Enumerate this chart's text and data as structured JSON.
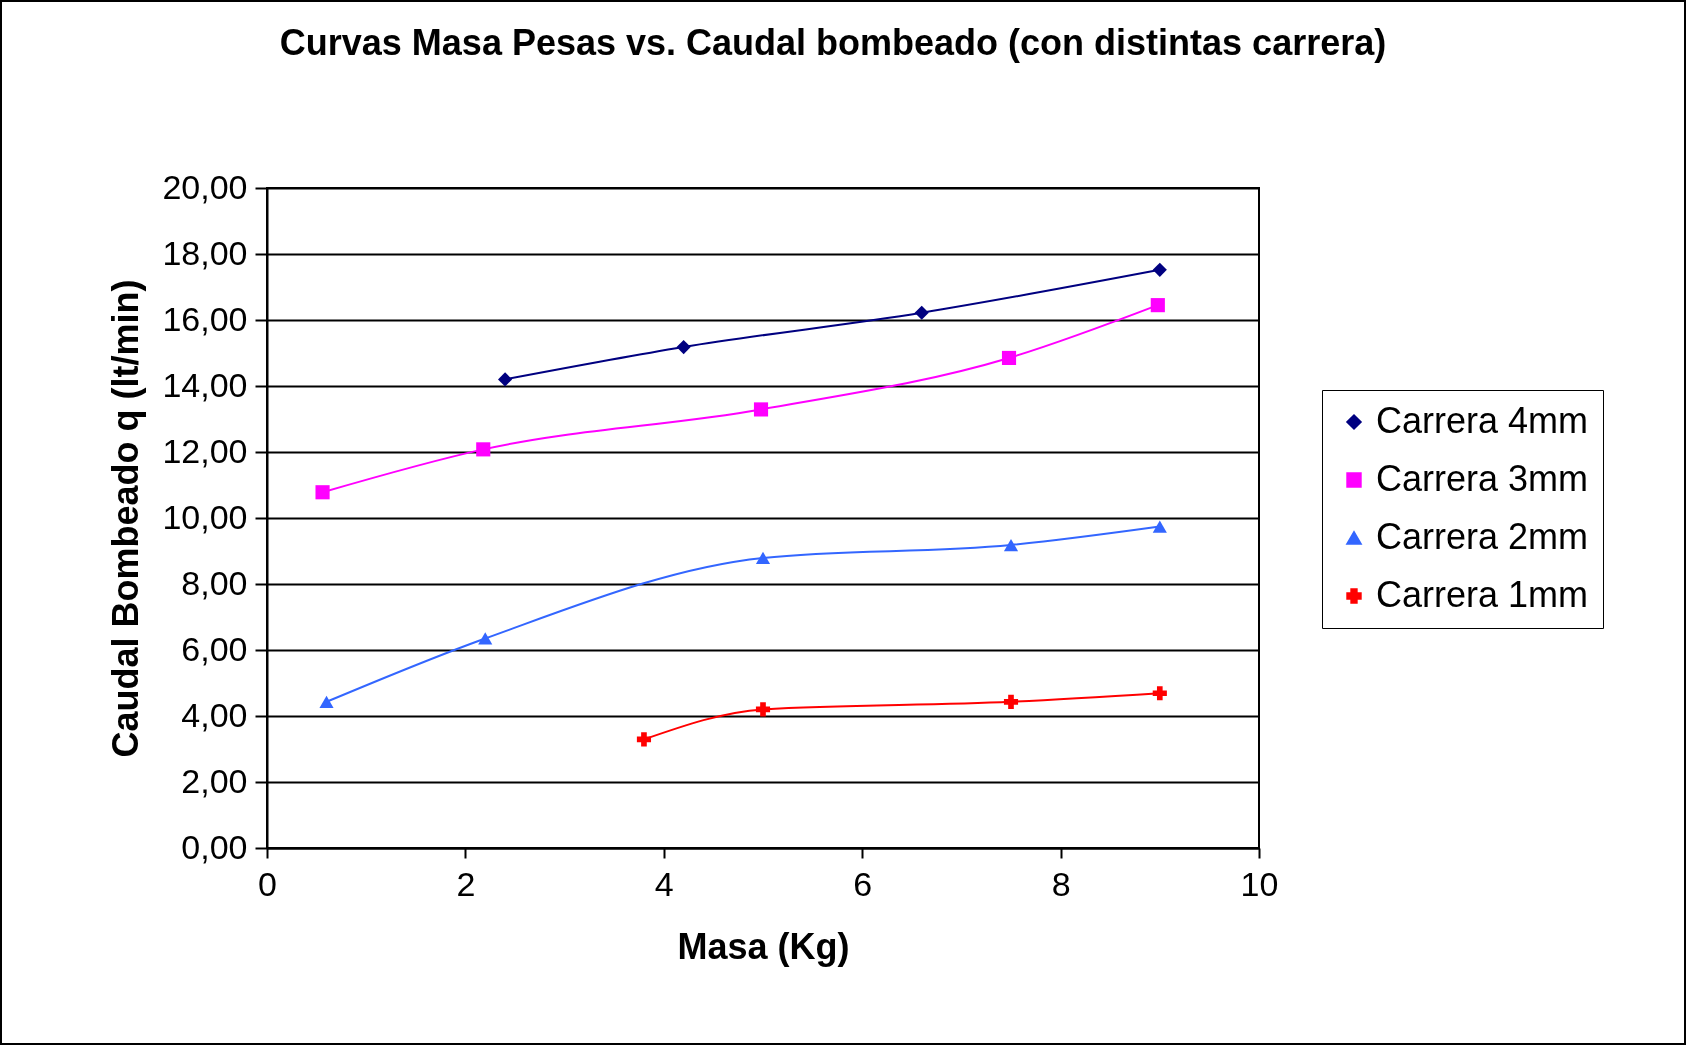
{
  "chart_data": {
    "type": "line",
    "title": "Curvas Masa Pesas vs. Caudal bombeado (con distintas carrera)",
    "xlabel": "Masa (Kg)",
    "ylabel": "Caudal Bombeado q (lt/min)",
    "xlim": [
      0,
      10
    ],
    "xticks": [
      0,
      2,
      4,
      6,
      8,
      10
    ],
    "ylim": [
      0,
      20
    ],
    "yticks": [
      {
        "value": 0,
        "label": "0,00"
      },
      {
        "value": 2,
        "label": "2,00"
      },
      {
        "value": 4,
        "label": "4,00"
      },
      {
        "value": 6,
        "label": "6,00"
      },
      {
        "value": 8,
        "label": "8,00"
      },
      {
        "value": 10,
        "label": "10,00"
      },
      {
        "value": 12,
        "label": "12,00"
      },
      {
        "value": 14,
        "label": "14,00"
      },
      {
        "value": 16,
        "label": "16,00"
      },
      {
        "value": 18,
        "label": "18,00"
      },
      {
        "value": 20,
        "label": "20,00"
      }
    ],
    "grid": "y",
    "legend": "right",
    "series": [
      {
        "name": "Carrera 4mm",
        "color": "#000080",
        "marker": "diamond",
        "x": [
          2.4,
          4.2,
          6.6,
          9.0
        ],
        "values": [
          14.2,
          15.18,
          16.22,
          17.52
        ]
      },
      {
        "name": "Carrera 3mm",
        "color": "#ff00ff",
        "marker": "square",
        "x": [
          0.56,
          2.18,
          4.98,
          7.48,
          8.98
        ],
        "values": [
          10.78,
          12.08,
          13.29,
          14.85,
          16.45
        ]
      },
      {
        "name": "Carrera 2mm",
        "color": "#3366ff",
        "marker": "triangle",
        "x": [
          0.6,
          2.2,
          5.0,
          7.5,
          9.0
        ],
        "values": [
          4.43,
          6.35,
          8.79,
          9.18,
          9.74
        ]
      },
      {
        "name": "Carrera 1mm",
        "color": "#ff0000",
        "marker": "cross",
        "x": [
          3.8,
          5.0,
          7.5,
          9.0
        ],
        "values": [
          3.29,
          4.2,
          4.43,
          4.69
        ]
      }
    ]
  }
}
